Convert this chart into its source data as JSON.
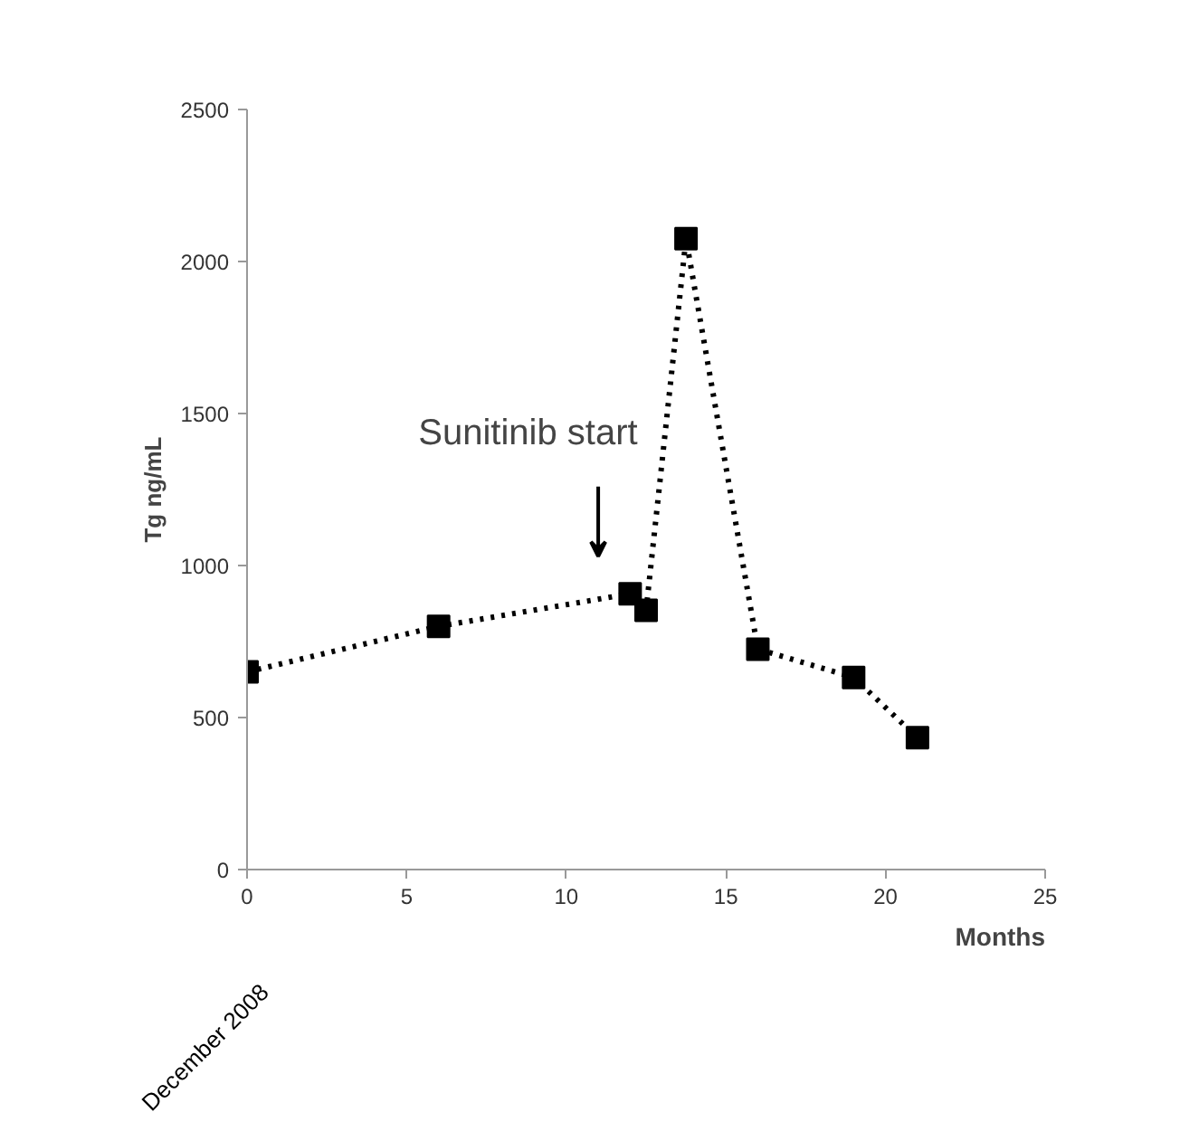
{
  "chart_data": {
    "type": "line",
    "xlabel": "Months",
    "ylabel": "Tg ng/mL",
    "x": [
      0,
      6,
      12,
      12.5,
      13.75,
      16,
      19,
      21
    ],
    "series": [
      {
        "color": "#000000",
        "values": [
          650,
          800,
          907,
          853,
          2075,
          725,
          632,
          434
        ]
      }
    ],
    "xlim": [
      0,
      25
    ],
    "xticks": [
      0,
      5,
      10,
      15,
      20,
      25
    ],
    "ylim": [
      0,
      2500
    ],
    "yticks": [
      0,
      500,
      1000,
      1500,
      2000,
      2500
    ],
    "marker": "square",
    "line_style": "dotted",
    "grid": false,
    "annotations": [
      "Sunitinib start",
      "December 2008"
    ]
  }
}
